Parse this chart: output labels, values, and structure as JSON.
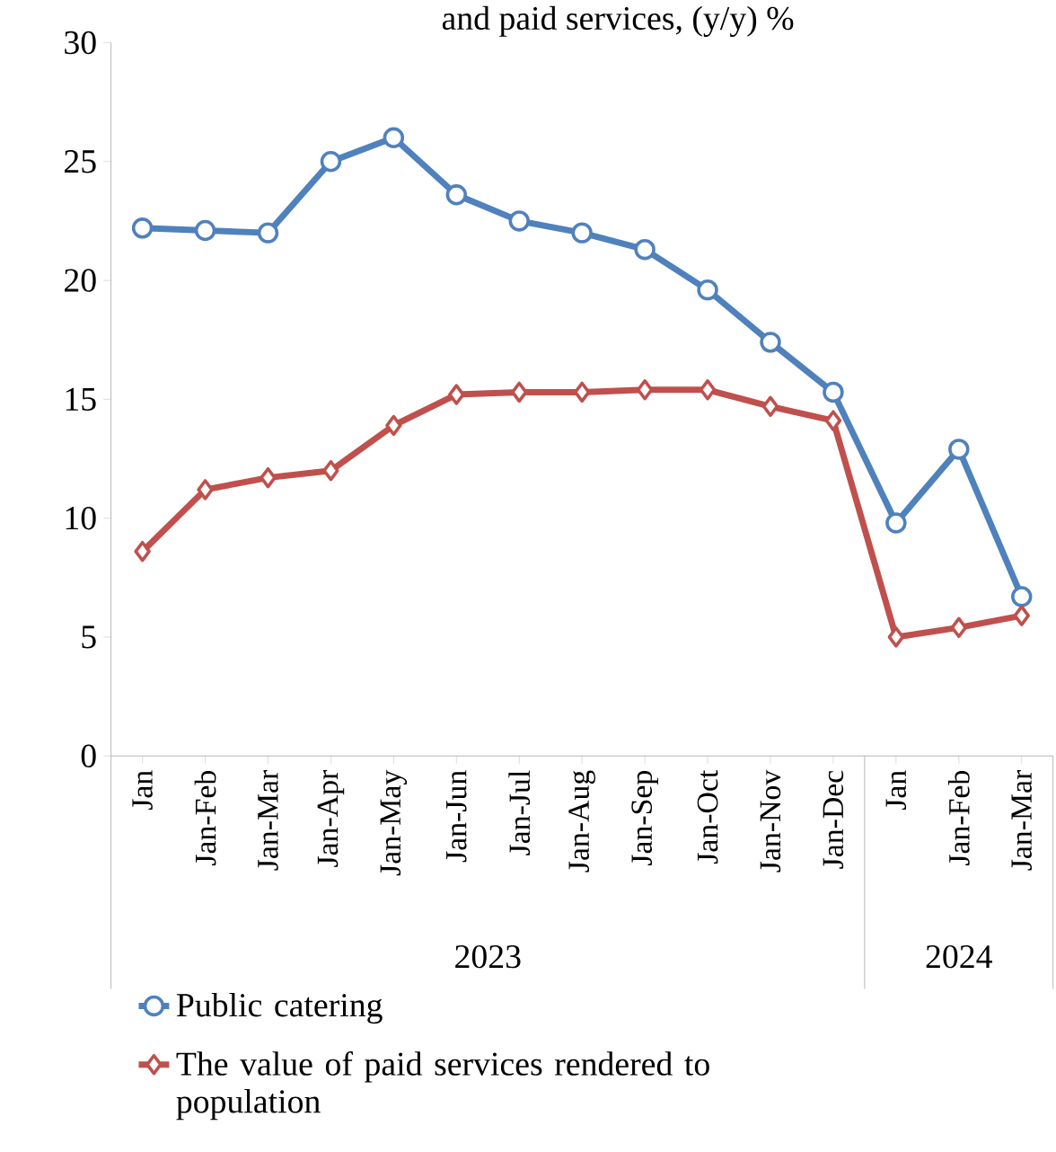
{
  "chart_data": {
    "type": "line",
    "title": "and paid services, (y/y) %",
    "categories": [
      "Jan",
      "Jan-Feb",
      "Jan-Mar",
      "Jan-Apr",
      "Jan-May",
      "Jan-Jun",
      "Jan-Jul",
      "Jan-Aug",
      "Jan-Sep",
      "Jan-Oct",
      "Jan-Nov",
      "Jan-Dec",
      "Jan",
      "Jan-Feb",
      "Jan-Mar"
    ],
    "series": [
      {
        "name": "Public catering",
        "color": "#4f81bd",
        "marker": "circle",
        "values": [
          22.2,
          22.1,
          22.0,
          25.0,
          26.0,
          23.6,
          22.5,
          22.0,
          21.3,
          19.6,
          17.4,
          15.3,
          9.8,
          12.9,
          6.7
        ]
      },
      {
        "name": "The value of paid services rendered to population",
        "color": "#c0504d",
        "marker": "diamond",
        "values": [
          8.6,
          11.2,
          11.7,
          12.0,
          13.9,
          15.2,
          15.3,
          15.3,
          15.4,
          15.4,
          14.7,
          14.1,
          5.0,
          5.4,
          5.9
        ]
      }
    ],
    "annotations": [
      "2023",
      "2024"
    ],
    "ylim": [
      0,
      30
    ],
    "yticks": [
      0,
      5,
      10,
      15,
      20,
      25,
      30
    ],
    "grid": false,
    "legend": "bottom",
    "line_style": "solid"
  }
}
